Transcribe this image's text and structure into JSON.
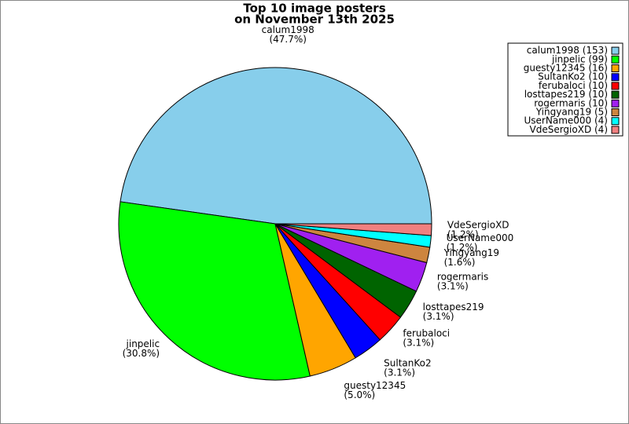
{
  "chart_data": {
    "type": "pie",
    "title": "Top 10 image posters",
    "subtitle": "on November 13th 2025",
    "categories": [
      "calum1998",
      "jinpelic",
      "guesty12345",
      "SultanKo2",
      "ferubaloci",
      "losttapes219",
      "rogermaris",
      "Yingyang19",
      "UserName000",
      "VdeSergioXD"
    ],
    "values": [
      47.7,
      30.8,
      5.0,
      3.1,
      3.1,
      3.1,
      3.1,
      1.6,
      1.2,
      1.2
    ],
    "value_labels": [
      "(47.7%)",
      "(30.8%)",
      "(5.0%)",
      "(3.1%)",
      "(3.1%)",
      "(3.1%)",
      "(3.1%)",
      "(1.6%)",
      "(1.2%)",
      "(1.2%)"
    ],
    "colors": [
      "#87ceeb",
      "#00ff00",
      "#ffa500",
      "#0000ff",
      "#ff0000",
      "#006400",
      "#a020f0",
      "#cd853f",
      "#00ffff",
      "#f08080"
    ],
    "legend_labels": [
      "calum1998 (153)",
      "jinpelic (99)",
      "guesty12345 (16)",
      "SultanKo2 (10)",
      "ferubaloci (10)",
      "losttapes219 (10)",
      "rogermaris (10)",
      "Yingyang19 (5)",
      "UserName000 (4)",
      "VdeSergioXD (4)"
    ],
    "legend_position": "upper right"
  }
}
